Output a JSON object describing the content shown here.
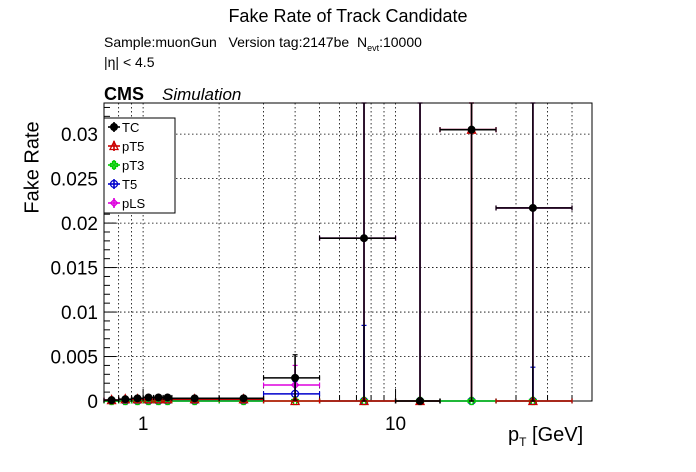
{
  "title": "Fake Rate of Track Candidate",
  "info": {
    "sample": "Sample:muonGun",
    "version": "Version tag:2147be",
    "nevt_label": "N",
    "nevt_sub": "evt",
    "nevt_value": ":10000",
    "eta_cut": "|η| < 4.5"
  },
  "cms_label": "CMS",
  "simulation_label": "Simulation",
  "chart_data": {
    "type": "scatter",
    "title": "Fake Rate of Track Candidate",
    "xlabel_main": "p",
    "xlabel_sub": "T",
    "xlabel_unit": " [GeV]",
    "ylabel": "Fake Rate",
    "x_scale": "log",
    "xlim": [
      0.7,
      60
    ],
    "ylim": [
      0,
      0.0335
    ],
    "grid": true,
    "legend_position": "top-left",
    "x_ticks": [
      {
        "value": 1,
        "label": "1"
      },
      {
        "value": 10,
        "label": "10"
      }
    ],
    "y_ticks": [
      {
        "value": 0,
        "label": "0"
      },
      {
        "value": 0.005,
        "label": "0.005"
      },
      {
        "value": 0.01,
        "label": "0.01"
      },
      {
        "value": 0.015,
        "label": "0.015"
      },
      {
        "value": 0.02,
        "label": "0.02"
      },
      {
        "value": 0.025,
        "label": "0.025"
      },
      {
        "value": 0.03,
        "label": "0.03"
      }
    ],
    "series": [
      {
        "name": "TC",
        "color": "#000000",
        "marker": "filled-circle",
        "points": [
          {
            "x": 0.75,
            "xlo": 0.7,
            "xhi": 0.8,
            "y": 0.0001,
            "ylo": 0,
            "yhi": 0.0003
          },
          {
            "x": 0.85,
            "xlo": 0.8,
            "xhi": 0.9,
            "y": 0.0002,
            "ylo": 0,
            "yhi": 0.0004
          },
          {
            "x": 0.95,
            "xlo": 0.9,
            "xhi": 1.0,
            "y": 0.0003,
            "ylo": 0.0001,
            "yhi": 0.0005
          },
          {
            "x": 1.05,
            "xlo": 1.0,
            "xhi": 1.1,
            "y": 0.0004,
            "ylo": 0.0002,
            "yhi": 0.0006
          },
          {
            "x": 1.15,
            "xlo": 1.1,
            "xhi": 1.2,
            "y": 0.0004,
            "ylo": 0.0002,
            "yhi": 0.0006
          },
          {
            "x": 1.25,
            "xlo": 1.2,
            "xhi": 1.3,
            "y": 0.0004,
            "ylo": 0.0002,
            "yhi": 0.0006
          },
          {
            "x": 1.6,
            "xlo": 1.3,
            "xhi": 2.0,
            "y": 0.0003,
            "ylo": 0.0002,
            "yhi": 0.0004
          },
          {
            "x": 2.5,
            "xlo": 2.0,
            "xhi": 3.0,
            "y": 0.0003,
            "ylo": 0.0002,
            "yhi": 0.0004
          },
          {
            "x": 4.0,
            "xlo": 3.0,
            "xhi": 5.0,
            "y": 0.0026,
            "ylo": 0.0001,
            "yhi": 0.0052
          },
          {
            "x": 7.5,
            "xlo": 5.0,
            "xhi": 10.0,
            "y": 0.0183,
            "ylo": 0.0,
            "yhi": 0.0335
          },
          {
            "x": 12.5,
            "xlo": 10.0,
            "xhi": 15.0,
            "y": 0.0,
            "ylo": 0.0,
            "yhi": 0.0335
          },
          {
            "x": 20.0,
            "xlo": 15.0,
            "xhi": 25.0,
            "y": 0.0305,
            "ylo": 0.0,
            "yhi": 0.0335
          },
          {
            "x": 35.0,
            "xlo": 25.0,
            "xhi": 50.0,
            "y": 0.0217,
            "ylo": 0.0,
            "yhi": 0.0335
          }
        ]
      },
      {
        "name": "pT5",
        "color": "#cc0000",
        "marker": "open-triangle",
        "points": [
          {
            "x": 0.75,
            "xlo": 0.7,
            "xhi": 0.8,
            "y": 0.0001,
            "ylo": 0,
            "yhi": 0.0002
          },
          {
            "x": 0.85,
            "xlo": 0.8,
            "xhi": 0.9,
            "y": 0.0002,
            "ylo": 0.0001,
            "yhi": 0.0003
          },
          {
            "x": 0.95,
            "xlo": 0.9,
            "xhi": 1.0,
            "y": 0.0002,
            "ylo": 0.0001,
            "yhi": 0.0003
          },
          {
            "x": 1.05,
            "xlo": 1.0,
            "xhi": 1.1,
            "y": 0.0002,
            "ylo": 0.0001,
            "yhi": 0.0003
          },
          {
            "x": 1.15,
            "xlo": 1.1,
            "xhi": 1.2,
            "y": 0.0002,
            "ylo": 0.0001,
            "yhi": 0.0003
          },
          {
            "x": 1.25,
            "xlo": 1.2,
            "xhi": 1.3,
            "y": 0.0002,
            "ylo": 0.0001,
            "yhi": 0.0003
          },
          {
            "x": 1.6,
            "xlo": 1.3,
            "xhi": 2.0,
            "y": 0.0002,
            "ylo": 0.0001,
            "yhi": 0.0003
          },
          {
            "x": 2.5,
            "xlo": 2.0,
            "xhi": 3.0,
            "y": 0.0002,
            "ylo": 0.0001,
            "yhi": 0.0003
          },
          {
            "x": 4.0,
            "xlo": 3.0,
            "xhi": 5.0,
            "y": 0.0,
            "ylo": 0.0,
            "yhi": 0.0002
          },
          {
            "x": 7.5,
            "xlo": 5.0,
            "xhi": 10.0,
            "y": 0.0,
            "ylo": 0.0,
            "yhi": 0.0
          },
          {
            "x": 12.5,
            "xlo": 10.0,
            "xhi": 15.0,
            "y": 0.0,
            "ylo": 0.0,
            "yhi": 0.0
          },
          {
            "x": 20.0,
            "xlo": 15.0,
            "xhi": 25.0,
            "y": 0.0305,
            "ylo": 0.0,
            "yhi": 0.0335
          },
          {
            "x": 35.0,
            "xlo": 25.0,
            "xhi": 50.0,
            "y": 0.0,
            "ylo": 0.0,
            "yhi": 0.0
          }
        ]
      },
      {
        "name": "pT3",
        "color": "#00cc00",
        "marker": "open-cross",
        "points": [
          {
            "x": 0.75,
            "xlo": 0.7,
            "xhi": 0.8,
            "y": 0.0,
            "ylo": 0,
            "yhi": 0.0001
          },
          {
            "x": 0.85,
            "xlo": 0.8,
            "xhi": 0.9,
            "y": 0.0,
            "ylo": 0,
            "yhi": 0.0001
          },
          {
            "x": 0.95,
            "xlo": 0.9,
            "xhi": 1.0,
            "y": 0.0,
            "ylo": 0,
            "yhi": 0.0001
          },
          {
            "x": 1.05,
            "xlo": 1.0,
            "xhi": 1.1,
            "y": 0.0,
            "ylo": 0,
            "yhi": 0.0001
          },
          {
            "x": 1.15,
            "xlo": 1.1,
            "xhi": 1.2,
            "y": 0.0,
            "ylo": 0,
            "yhi": 0.0001
          },
          {
            "x": 1.25,
            "xlo": 1.2,
            "xhi": 1.3,
            "y": 0.0,
            "ylo": 0,
            "yhi": 0.0001
          },
          {
            "x": 1.6,
            "xlo": 1.3,
            "xhi": 2.0,
            "y": 0.0,
            "ylo": 0,
            "yhi": 0.0001
          },
          {
            "x": 2.5,
            "xlo": 2.0,
            "xhi": 3.0,
            "y": 0.0,
            "ylo": 0,
            "yhi": 0.0001
          },
          {
            "x": 4.0,
            "xlo": 3.0,
            "xhi": 5.0,
            "y": 0.0,
            "ylo": 0,
            "yhi": 0.0
          },
          {
            "x": 7.5,
            "xlo": 5.0,
            "xhi": 10.0,
            "y": 0.0,
            "ylo": 0,
            "yhi": 0.0
          },
          {
            "x": 12.5,
            "xlo": 10.0,
            "xhi": 15.0,
            "y": 0.0,
            "ylo": 0,
            "yhi": 0.0
          },
          {
            "x": 20.0,
            "xlo": 15.0,
            "xhi": 25.0,
            "y": 0.0,
            "ylo": 0,
            "yhi": 0.0
          },
          {
            "x": 35.0,
            "xlo": 25.0,
            "xhi": 50.0,
            "y": 0.0,
            "ylo": 0,
            "yhi": 0.0
          }
        ]
      },
      {
        "name": "T5",
        "color": "#0000cc",
        "marker": "open-circle",
        "points": [
          {
            "x": 0.75,
            "xlo": 0.7,
            "xhi": 0.8,
            "y": 0.0,
            "ylo": 0,
            "yhi": 0.0001
          },
          {
            "x": 0.85,
            "xlo": 0.8,
            "xhi": 0.9,
            "y": 0.0,
            "ylo": 0,
            "yhi": 0.0001
          },
          {
            "x": 0.95,
            "xlo": 0.9,
            "xhi": 1.0,
            "y": 0.0,
            "ylo": 0,
            "yhi": 0.0001
          },
          {
            "x": 1.05,
            "xlo": 1.0,
            "xhi": 1.1,
            "y": 0.0,
            "ylo": 0,
            "yhi": 0.0001
          },
          {
            "x": 1.15,
            "xlo": 1.1,
            "xhi": 1.2,
            "y": 0.0,
            "ylo": 0,
            "yhi": 0.0001
          },
          {
            "x": 1.25,
            "xlo": 1.2,
            "xhi": 1.3,
            "y": 0.0,
            "ylo": 0,
            "yhi": 0.0001
          },
          {
            "x": 1.6,
            "xlo": 1.3,
            "xhi": 2.0,
            "y": 0.0,
            "ylo": 0,
            "yhi": 0.0001
          },
          {
            "x": 2.5,
            "xlo": 2.0,
            "xhi": 3.0,
            "y": 0.0,
            "ylo": 0,
            "yhi": 0.0001
          },
          {
            "x": 4.0,
            "xlo": 3.0,
            "xhi": 5.0,
            "y": 0.0008,
            "ylo": 0.0,
            "yhi": 0.0022
          },
          {
            "x": 7.5,
            "xlo": 5.0,
            "xhi": 10.0,
            "y": 0.0,
            "ylo": 0.0,
            "yhi": 0.0085
          },
          {
            "x": 12.5,
            "xlo": 10.0,
            "xhi": 15.0,
            "y": 0.0,
            "ylo": 0.0,
            "yhi": 0.0
          },
          {
            "x": 20.0,
            "xlo": 15.0,
            "xhi": 25.0,
            "y": 0.0,
            "ylo": 0.0,
            "yhi": 0.0
          },
          {
            "x": 35.0,
            "xlo": 25.0,
            "xhi": 50.0,
            "y": 0.0,
            "ylo": 0.0,
            "yhi": 0.0038
          }
        ]
      },
      {
        "name": "pLS",
        "color": "#dd00dd",
        "marker": "open-diamond",
        "points": [
          {
            "x": 0.75,
            "xlo": 0.7,
            "xhi": 0.8,
            "y": 0.0001,
            "ylo": 0,
            "yhi": 0.0002
          },
          {
            "x": 0.85,
            "xlo": 0.8,
            "xhi": 0.9,
            "y": 0.0001,
            "ylo": 0,
            "yhi": 0.0002
          },
          {
            "x": 0.95,
            "xlo": 0.9,
            "xhi": 1.0,
            "y": 0.0001,
            "ylo": 0,
            "yhi": 0.0002
          },
          {
            "x": 1.05,
            "xlo": 1.0,
            "xhi": 1.1,
            "y": 0.0001,
            "ylo": 0,
            "yhi": 0.0002
          },
          {
            "x": 1.15,
            "xlo": 1.1,
            "xhi": 1.2,
            "y": 0.0001,
            "ylo": 0,
            "yhi": 0.0002
          },
          {
            "x": 1.25,
            "xlo": 1.2,
            "xhi": 1.3,
            "y": 0.0001,
            "ylo": 0,
            "yhi": 0.0002
          },
          {
            "x": 1.6,
            "xlo": 1.3,
            "xhi": 2.0,
            "y": 0.0001,
            "ylo": 0,
            "yhi": 0.0002
          },
          {
            "x": 2.5,
            "xlo": 2.0,
            "xhi": 3.0,
            "y": 0.0001,
            "ylo": 0,
            "yhi": 0.0002
          },
          {
            "x": 4.0,
            "xlo": 3.0,
            "xhi": 5.0,
            "y": 0.0018,
            "ylo": 0.0,
            "yhi": 0.004
          },
          {
            "x": 7.5,
            "xlo": 5.0,
            "xhi": 10.0,
            "y": 0.0183,
            "ylo": 0.0,
            "yhi": 0.0335
          },
          {
            "x": 12.5,
            "xlo": 10.0,
            "xhi": 15.0,
            "y": 0.0,
            "ylo": 0.0,
            "yhi": 0.0335
          },
          {
            "x": 20.0,
            "xlo": 15.0,
            "xhi": 25.0,
            "y": 0.0305,
            "ylo": 0.0,
            "yhi": 0.0335
          },
          {
            "x": 35.0,
            "xlo": 25.0,
            "xhi": 50.0,
            "y": 0.0217,
            "ylo": 0.0,
            "yhi": 0.0335
          }
        ]
      }
    ]
  }
}
